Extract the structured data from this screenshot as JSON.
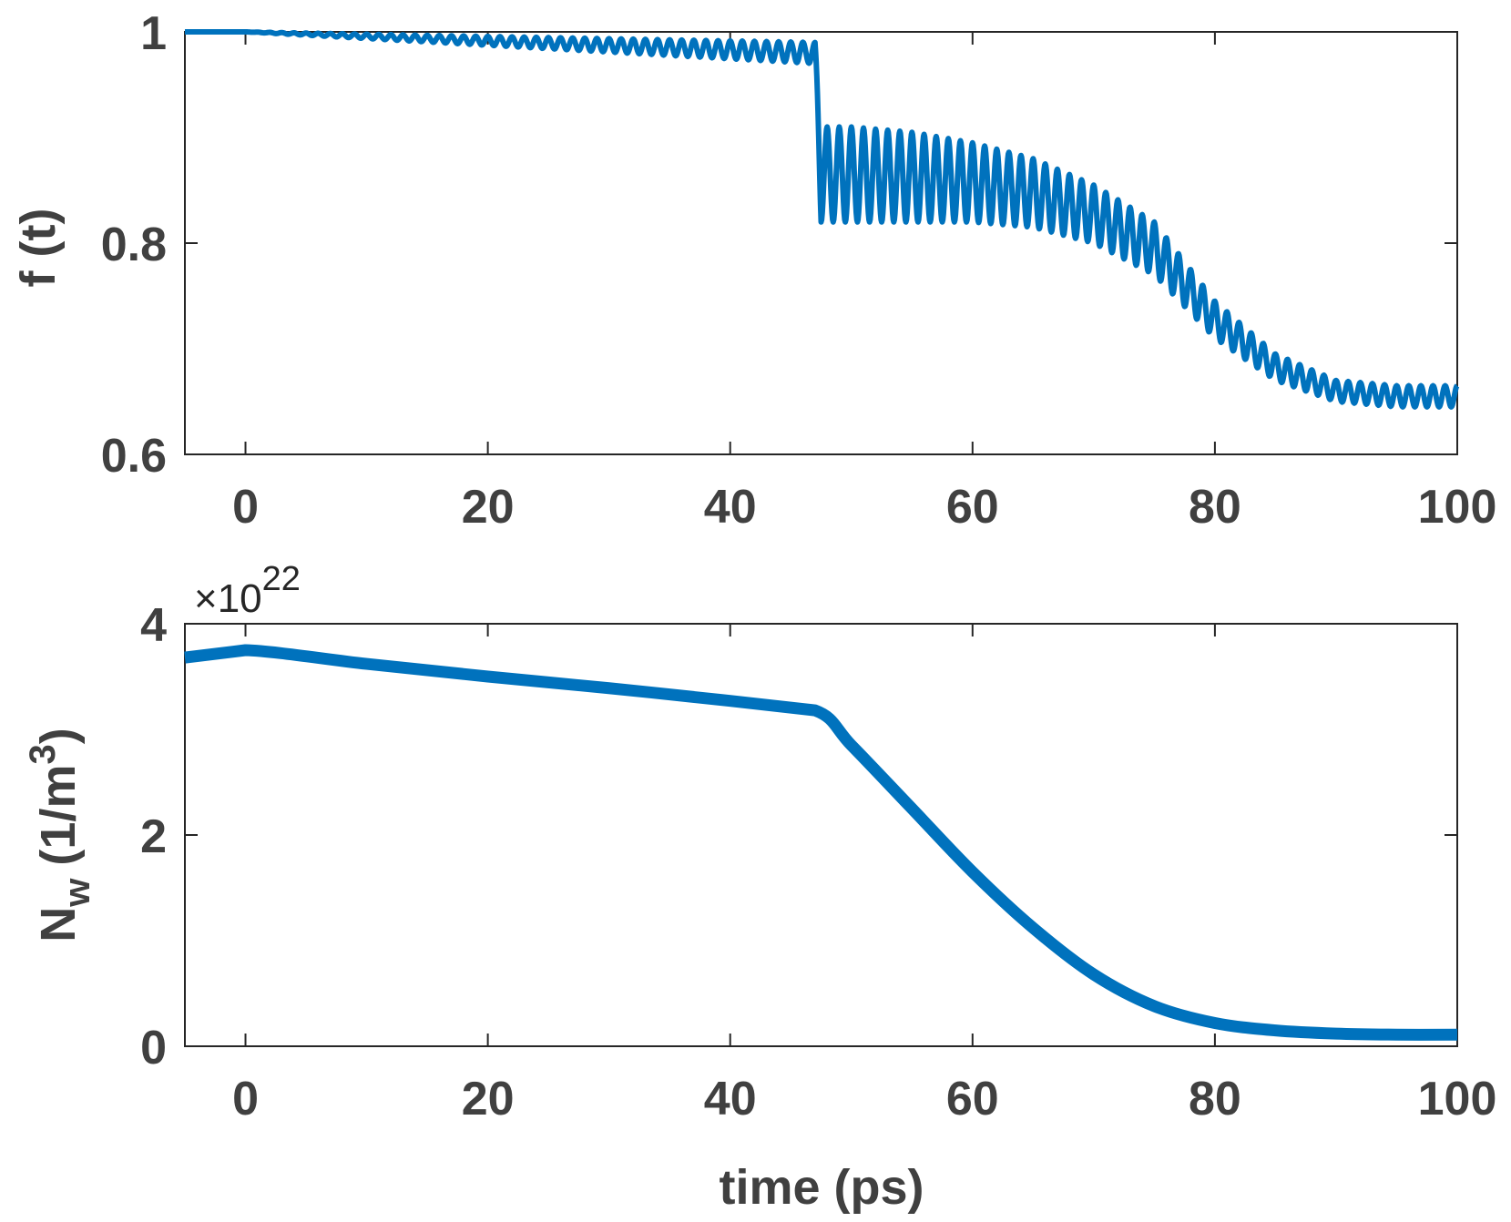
{
  "chart_data": [
    {
      "type": "line",
      "ylabel": "f (t)",
      "xlabel": "",
      "xlim": [
        -5,
        100
      ],
      "ylim": [
        0.6,
        1
      ],
      "xticks": [
        "0",
        "20",
        "40",
        "60",
        "80",
        "100"
      ],
      "yticks": [
        "0.6",
        "0.8",
        "1"
      ],
      "grid": false,
      "color": "#0072BD",
      "series": [
        {
          "description_points": {
            "x": [
              -5,
              0,
              47,
              47.5,
              50,
              55,
              60,
              65,
              70,
              75,
              80,
              85,
              90,
              95,
              100
            ],
            "upper": [
              1.0,
              1.0,
              0.99,
              0.91,
              0.91,
              0.905,
              0.895,
              0.88,
              0.855,
              0.82,
              0.745,
              0.695,
              0.67,
              0.665,
              0.665
            ],
            "lower": [
              1.0,
              1.0,
              0.97,
              0.82,
              0.82,
              0.82,
              0.82,
              0.815,
              0.8,
              0.77,
              0.71,
              0.67,
              0.65,
              0.645,
              0.645
            ]
          },
          "oscillation_period_ps": 1.0
        }
      ]
    },
    {
      "type": "line",
      "ylabel_main": "N",
      "ylabel_sub": "w",
      "ylabel_unit": "(1/m",
      "ylabel_sup": "3",
      "ylabel_close": ")",
      "xlabel": "time (ps)",
      "multiplier_base": "×10",
      "multiplier_exp": "22",
      "xlim": [
        -5,
        100
      ],
      "ylim": [
        0,
        4
      ],
      "xticks": [
        "0",
        "20",
        "40",
        "60",
        "80",
        "100"
      ],
      "yticks": [
        "0",
        "2",
        "4"
      ],
      "grid": false,
      "color": "#0072BD",
      "series": [
        {
          "x": [
            -5,
            0,
            10,
            20,
            30,
            40,
            47,
            50,
            55,
            60,
            65,
            70,
            75,
            80,
            85,
            90,
            95,
            100
          ],
          "y": [
            3.68,
            3.75,
            3.62,
            3.5,
            3.39,
            3.27,
            3.18,
            2.85,
            2.25,
            1.65,
            1.12,
            0.68,
            0.38,
            0.22,
            0.15,
            0.12,
            0.11,
            0.11
          ]
        }
      ]
    }
  ]
}
